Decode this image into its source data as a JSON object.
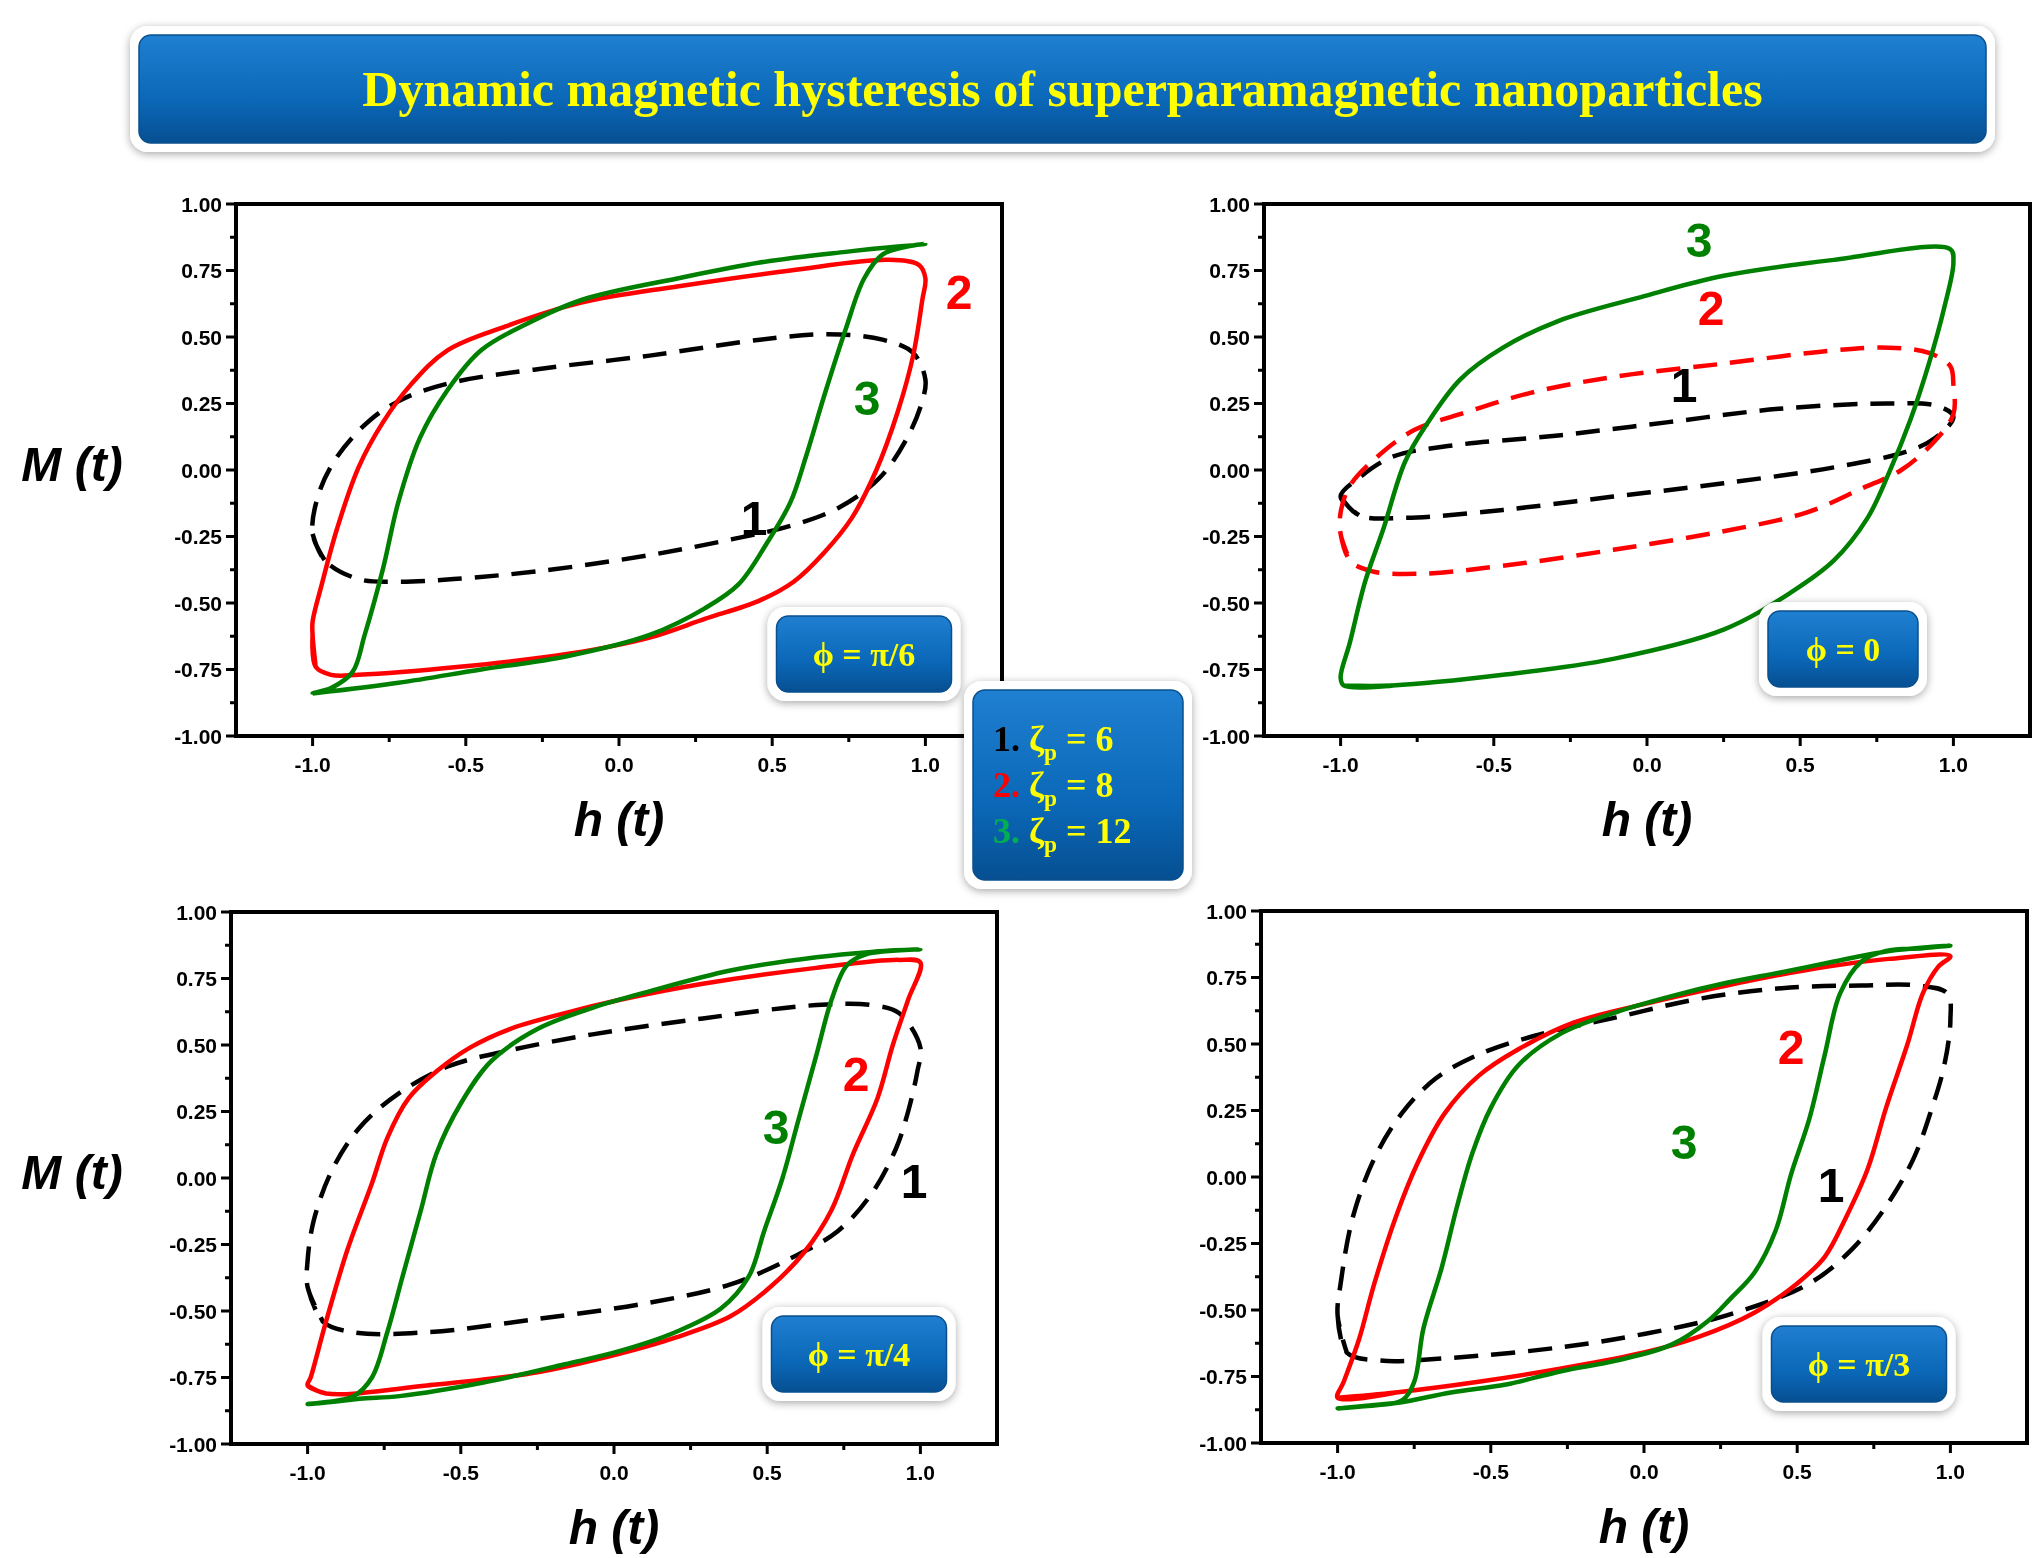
{
  "chart_data": [
    {
      "type": "line",
      "title": "Dynamic magnetic hysteresis of superparamagnetic nanoparticles",
      "xlabel": "h (t)",
      "ylabel": "M (t)",
      "xlim": [
        -1.25,
        1.25
      ],
      "ylim": [
        -1,
        1
      ],
      "xticks": [
        {
          "value": -1,
          "label": "-1.0"
        },
        {
          "value": -0.75,
          "label": null
        },
        {
          "value": -0.5,
          "label": "-0.5"
        },
        {
          "value": -0.25,
          "label": null
        },
        {
          "value": 0,
          "label": "0.0"
        },
        {
          "value": 0.25,
          "label": null
        },
        {
          "value": 0.5,
          "label": "0.5"
        },
        {
          "value": 0.75,
          "label": null
        },
        {
          "value": 1,
          "label": "1.0"
        }
      ],
      "yticks": [
        {
          "value": -1,
          "label": "-1.00"
        },
        {
          "value": -0.875,
          "label": null
        },
        {
          "value": -0.75,
          "label": "-0.75"
        },
        {
          "value": -0.625,
          "label": null
        },
        {
          "value": -0.5,
          "label": "-0.50"
        },
        {
          "value": -0.375,
          "label": null
        },
        {
          "value": -0.25,
          "label": "-0.25"
        },
        {
          "value": -0.125,
          "label": null
        },
        {
          "value": 0,
          "label": "0.00"
        },
        {
          "value": 0.125,
          "label": null
        },
        {
          "value": 0.25,
          "label": "0.25"
        },
        {
          "value": 0.375,
          "label": null
        },
        {
          "value": 0.5,
          "label": "0.50"
        },
        {
          "value": 0.625,
          "label": null
        },
        {
          "value": 0.75,
          "label": "0.75"
        },
        {
          "value": 0.875,
          "label": null
        },
        {
          "value": 1,
          "label": "1.00"
        }
      ],
      "series": [
        {
          "name": "1",
          "color": "#000000",
          "line_style": "dashed",
          "x": [
            -1.0,
            -0.96,
            -0.85,
            -0.72,
            -0.54,
            -0.26,
            0.1,
            0.37,
            0.56,
            0.72,
            0.85,
            0.94,
            0.99,
            1.0,
            0.96,
            0.86,
            0.68,
            0.46,
            0.1,
            -0.26,
            -0.54,
            -0.7,
            -0.81,
            -0.92,
            -0.98,
            -1.0,
            -0.96
          ],
          "values": [
            -0.24,
            -0.34,
            -0.41,
            -0.42,
            -0.41,
            -0.38,
            -0.32,
            -0.26,
            -0.21,
            -0.14,
            -0.03,
            0.12,
            0.26,
            0.34,
            0.44,
            0.49,
            0.51,
            0.49,
            0.43,
            0.38,
            0.33,
            0.27,
            0.19,
            0.05,
            -0.09,
            -0.24,
            -0.34
          ]
        },
        {
          "name": "2",
          "color": "#ff0000",
          "line_style": "solid",
          "x": [
            -1.0,
            -0.99,
            -0.94,
            -0.85,
            -0.52,
            -0.16,
            0.1,
            0.28,
            0.46,
            0.57,
            0.67,
            0.76,
            0.84,
            0.91,
            0.96,
            0.99,
            1.0,
            0.98,
            0.88,
            0.56,
            0.19,
            -0.12,
            -0.37,
            -0.56,
            -0.68,
            -0.77,
            -0.85,
            -0.92,
            -0.97,
            -1.0,
            -1.0,
            -0.99
          ],
          "values": [
            -0.62,
            -0.74,
            -0.77,
            -0.77,
            -0.74,
            -0.69,
            -0.63,
            -0.56,
            -0.49,
            -0.42,
            -0.31,
            -0.18,
            0.0,
            0.22,
            0.43,
            0.64,
            0.72,
            0.77,
            0.79,
            0.75,
            0.69,
            0.63,
            0.54,
            0.45,
            0.32,
            0.18,
            0.01,
            -0.22,
            -0.43,
            -0.57,
            -0.62,
            -0.74
          ]
        },
        {
          "name": "3",
          "color": "#008000",
          "line_style": "solid",
          "x": [
            -1.0,
            -0.72,
            -0.45,
            -0.17,
            0.1,
            0.28,
            0.39,
            0.48,
            0.56,
            0.61,
            0.67,
            0.74,
            0.8,
            0.86,
            0.94,
            1.0,
            0.74,
            0.46,
            0.19,
            -0.12,
            -0.3,
            -0.45,
            -0.56,
            -0.65,
            -0.72,
            -0.77,
            -0.83,
            -0.87,
            -0.94,
            -1.0,
            -0.72
          ],
          "values": [
            -0.84,
            -0.8,
            -0.75,
            -0.7,
            -0.62,
            -0.52,
            -0.43,
            -0.28,
            -0.12,
            0.05,
            0.28,
            0.53,
            0.72,
            0.81,
            0.84,
            0.85,
            0.82,
            0.78,
            0.72,
            0.64,
            0.55,
            0.45,
            0.3,
            0.12,
            -0.12,
            -0.37,
            -0.62,
            -0.76,
            -0.82,
            -0.84,
            -0.8
          ]
        }
      ],
      "annotations": [
        "ϕ = π/6"
      ]
    },
    {
      "type": "line",
      "xlabel": "h (t)",
      "xlim": [
        -1.25,
        1.25
      ],
      "ylim": [
        -1,
        1
      ],
      "xticks": [
        {
          "value": -1,
          "label": "-1.0"
        },
        {
          "value": -0.75,
          "label": null
        },
        {
          "value": -0.5,
          "label": "-0.5"
        },
        {
          "value": -0.25,
          "label": null
        },
        {
          "value": 0,
          "label": "0.0"
        },
        {
          "value": 0.25,
          "label": null
        },
        {
          "value": 0.5,
          "label": "0.5"
        },
        {
          "value": 0.75,
          "label": null
        },
        {
          "value": 1,
          "label": "1.0"
        }
      ],
      "yticks": [
        {
          "value": -1,
          "label": "-1.00"
        },
        {
          "value": -0.875,
          "label": null
        },
        {
          "value": -0.75,
          "label": "-0.75"
        },
        {
          "value": -0.625,
          "label": null
        },
        {
          "value": -0.5,
          "label": "-0.50"
        },
        {
          "value": -0.375,
          "label": null
        },
        {
          "value": -0.25,
          "label": "-0.25"
        },
        {
          "value": -0.125,
          "label": null
        },
        {
          "value": 0,
          "label": "0.00"
        },
        {
          "value": 0.125,
          "label": null
        },
        {
          "value": 0.25,
          "label": "0.25"
        },
        {
          "value": 0.375,
          "label": null
        },
        {
          "value": 0.5,
          "label": "0.50"
        },
        {
          "value": 0.625,
          "label": null
        },
        {
          "value": 0.75,
          "label": "0.75"
        },
        {
          "value": 0.875,
          "label": null
        },
        {
          "value": 1,
          "label": "1.00"
        }
      ],
      "series": [
        {
          "name": "1",
          "color": "#000000",
          "line_style": "dashed",
          "x": [
            -1.0,
            -0.94,
            -0.79,
            -0.47,
            -0.11,
            0.25,
            0.61,
            0.85,
            0.94,
            1.0,
            0.95,
            0.79,
            0.43,
            0.07,
            -0.29,
            -0.65,
            -0.83,
            -0.94,
            -1.0,
            -0.94
          ],
          "values": [
            -0.1,
            -0.17,
            -0.18,
            -0.15,
            -0.1,
            -0.05,
            0.01,
            0.07,
            0.12,
            0.2,
            0.24,
            0.25,
            0.23,
            0.18,
            0.13,
            0.09,
            0.05,
            -0.03,
            -0.1,
            -0.17
          ]
        },
        {
          "name": "2",
          "color": "#ff0000",
          "line_style": "dashed",
          "x": [
            -1.0,
            -0.97,
            -0.9,
            -0.74,
            -0.47,
            -0.11,
            0.25,
            0.52,
            0.7,
            0.83,
            0.94,
            1.0,
            1.0,
            0.99,
            0.92,
            0.79,
            0.61,
            0.25,
            -0.11,
            -0.38,
            -0.61,
            -0.76,
            -0.88,
            -0.97,
            -1.0,
            -1.0,
            -0.97
          ],
          "values": [
            -0.24,
            -0.34,
            -0.38,
            -0.39,
            -0.36,
            -0.3,
            -0.23,
            -0.16,
            -0.07,
            0.0,
            0.11,
            0.21,
            0.32,
            0.39,
            0.44,
            0.46,
            0.45,
            0.4,
            0.35,
            0.29,
            0.21,
            0.15,
            0.05,
            -0.06,
            -0.16,
            -0.24,
            -0.34
          ]
        },
        {
          "name": "3",
          "color": "#008000",
          "line_style": "solid",
          "x": [
            -0.99,
            -0.83,
            -0.47,
            -0.11,
            0.25,
            0.47,
            0.61,
            0.72,
            0.79,
            0.86,
            0.92,
            0.97,
            1.0,
            0.99,
            0.61,
            0.25,
            -0.02,
            -0.29,
            -0.47,
            -0.61,
            -0.72,
            -0.79,
            -0.86,
            -0.92,
            -0.97,
            -1.0,
            -0.99,
            -0.83
          ],
          "values": [
            -0.81,
            -0.81,
            -0.77,
            -0.71,
            -0.6,
            -0.46,
            -0.34,
            -0.18,
            -0.01,
            0.19,
            0.4,
            0.61,
            0.78,
            0.83,
            0.79,
            0.73,
            0.65,
            0.56,
            0.46,
            0.34,
            0.17,
            0.03,
            -0.22,
            -0.42,
            -0.65,
            -0.78,
            -0.81,
            -0.81
          ]
        }
      ],
      "annotations": [
        "ϕ = 0"
      ]
    },
    {
      "type": "other",
      "annotations": [
        "1. ζ$_{p}$ = 6",
        "2. ζ$_{p}$ = 8",
        "3. ζ$_{p}$ = 12"
      ],
      "colors": [
        "#000000",
        "#ff0000",
        "#00b050"
      ]
    },
    {
      "type": "line",
      "xlabel": "h (t)",
      "ylabel": "M (t)",
      "xlim": [
        -1.25,
        1.25
      ],
      "ylim": [
        -1,
        1
      ],
      "xticks": [
        {
          "value": -1,
          "label": "-1.0"
        },
        {
          "value": -0.75,
          "label": null
        },
        {
          "value": -0.5,
          "label": "-0.5"
        },
        {
          "value": -0.25,
          "label": null
        },
        {
          "value": 0,
          "label": "0.0"
        },
        {
          "value": 0.25,
          "label": null
        },
        {
          "value": 0.5,
          "label": "0.5"
        },
        {
          "value": 0.75,
          "label": null
        },
        {
          "value": 1,
          "label": "1.0"
        }
      ],
      "yticks": [
        {
          "value": -1,
          "label": "-1.00"
        },
        {
          "value": -0.875,
          "label": null
        },
        {
          "value": -0.75,
          "label": "-0.75"
        },
        {
          "value": -0.625,
          "label": null
        },
        {
          "value": -0.5,
          "label": "-0.50"
        },
        {
          "value": -0.375,
          "label": null
        },
        {
          "value": -0.25,
          "label": "-0.25"
        },
        {
          "value": -0.125,
          "label": null
        },
        {
          "value": 0,
          "label": "0.00"
        },
        {
          "value": 0.125,
          "label": null
        },
        {
          "value": 0.25,
          "label": "0.25"
        },
        {
          "value": 0.375,
          "label": null
        },
        {
          "value": 0.5,
          "label": "0.50"
        },
        {
          "value": 0.625,
          "label": null
        },
        {
          "value": 0.75,
          "label": "0.75"
        },
        {
          "value": 0.875,
          "label": null
        },
        {
          "value": 1,
          "label": "1.00"
        }
      ],
      "series": [
        {
          "name": "1",
          "color": "#000000",
          "line_style": "dashed",
          "x": [
            -1.0,
            -0.95,
            -0.85,
            -0.61,
            -0.25,
            0.11,
            0.38,
            0.58,
            0.73,
            0.84,
            0.92,
            0.96,
            0.99,
            1.0,
            0.93,
            0.84,
            0.66,
            0.29,
            -0.07,
            -0.34,
            -0.54,
            -0.7,
            -0.83,
            -0.92,
            -0.98,
            -1.0,
            -1.0,
            -0.95
          ],
          "values": [
            -0.41,
            -0.54,
            -0.58,
            -0.58,
            -0.53,
            -0.47,
            -0.4,
            -0.3,
            -0.2,
            -0.06,
            0.11,
            0.25,
            0.4,
            0.49,
            0.62,
            0.65,
            0.65,
            0.6,
            0.54,
            0.48,
            0.42,
            0.32,
            0.19,
            0.03,
            -0.16,
            -0.31,
            -0.41,
            -0.54
          ]
        },
        {
          "name": "2",
          "color": "#ff0000",
          "line_style": "solid",
          "x": [
            -1.0,
            -0.94,
            -0.61,
            -0.25,
            0.02,
            0.2,
            0.38,
            0.51,
            0.62,
            0.71,
            0.78,
            0.86,
            0.91,
            0.96,
            1.0,
            0.93,
            0.66,
            0.29,
            0.02,
            -0.16,
            -0.34,
            -0.47,
            -0.58,
            -0.67,
            -0.74,
            -0.79,
            -0.87,
            -0.94,
            -0.99,
            -1.0,
            -0.94
          ],
          "values": [
            -0.78,
            -0.81,
            -0.78,
            -0.73,
            -0.66,
            -0.6,
            -0.52,
            -0.41,
            -0.28,
            -0.12,
            0.09,
            0.3,
            0.5,
            0.67,
            0.81,
            0.82,
            0.79,
            0.73,
            0.67,
            0.62,
            0.56,
            0.49,
            0.4,
            0.3,
            0.15,
            -0.02,
            -0.27,
            -0.54,
            -0.75,
            -0.78,
            -0.81
          ]
        },
        {
          "name": "3",
          "color": "#008000",
          "line_style": "solid",
          "x": [
            -1.0,
            -0.83,
            -0.7,
            -0.43,
            -0.16,
            0.02,
            0.2,
            0.35,
            0.44,
            0.49,
            0.55,
            0.6,
            0.66,
            0.71,
            0.76,
            0.82,
            1.0,
            0.84,
            0.66,
            0.38,
            0.11,
            -0.07,
            -0.25,
            -0.4,
            -0.5,
            -0.58,
            -0.63,
            -0.69,
            -0.74,
            -0.79,
            -0.85,
            -1.0,
            -0.83
          ],
          "values": [
            -0.85,
            -0.83,
            -0.82,
            -0.77,
            -0.7,
            -0.65,
            -0.58,
            -0.49,
            -0.37,
            -0.2,
            0.0,
            0.21,
            0.46,
            0.67,
            0.8,
            0.84,
            0.86,
            0.85,
            0.83,
            0.78,
            0.7,
            0.64,
            0.56,
            0.44,
            0.28,
            0.09,
            -0.12,
            -0.37,
            -0.58,
            -0.75,
            -0.82,
            -0.85,
            -0.83
          ]
        }
      ],
      "annotations": [
        "ϕ = π/4"
      ]
    },
    {
      "type": "line",
      "xlabel": "h (t)",
      "xlim": [
        -1.25,
        1.25
      ],
      "ylim": [
        -1,
        1
      ],
      "xticks": [
        {
          "value": -1,
          "label": "-1.0"
        },
        {
          "value": -0.75,
          "label": null
        },
        {
          "value": -0.5,
          "label": "-0.5"
        },
        {
          "value": -0.25,
          "label": null
        },
        {
          "value": 0,
          "label": "0.0"
        },
        {
          "value": 0.25,
          "label": null
        },
        {
          "value": 0.5,
          "label": "0.5"
        },
        {
          "value": 0.75,
          "label": null
        },
        {
          "value": 1,
          "label": "1.0"
        }
      ],
      "yticks": [
        {
          "value": -1,
          "label": "-1.00"
        },
        {
          "value": -0.875,
          "label": null
        },
        {
          "value": -0.75,
          "label": "-0.75"
        },
        {
          "value": -0.625,
          "label": null
        },
        {
          "value": -0.5,
          "label": "-0.50"
        },
        {
          "value": -0.375,
          "label": null
        },
        {
          "value": -0.25,
          "label": "-0.25"
        },
        {
          "value": -0.125,
          "label": null
        },
        {
          "value": 0,
          "label": "0.00"
        },
        {
          "value": 0.125,
          "label": null
        },
        {
          "value": 0.25,
          "label": "0.25"
        },
        {
          "value": 0.375,
          "label": null
        },
        {
          "value": 0.5,
          "label": "0.50"
        },
        {
          "value": 0.625,
          "label": null
        },
        {
          "value": 0.75,
          "label": "0.75"
        },
        {
          "value": 0.875,
          "label": null
        },
        {
          "value": 1,
          "label": "1.00"
        }
      ],
      "series": [
        {
          "name": "1",
          "color": "#000000",
          "line_style": "dashed",
          "x": [
            -1.0,
            -0.97,
            -0.86,
            -0.63,
            -0.27,
            0.0,
            0.27,
            0.54,
            0.68,
            0.79,
            0.88,
            0.94,
            0.98,
            1.0,
            0.99,
            0.89,
            0.71,
            0.45,
            0.18,
            -0.09,
            -0.36,
            -0.54,
            -0.68,
            -0.79,
            -0.88,
            -0.95,
            -0.99,
            -1.0,
            -0.97
          ],
          "values": [
            -0.52,
            -0.66,
            -0.69,
            -0.68,
            -0.64,
            -0.59,
            -0.52,
            -0.4,
            -0.27,
            -0.11,
            0.07,
            0.26,
            0.42,
            0.59,
            0.69,
            0.72,
            0.72,
            0.71,
            0.67,
            0.6,
            0.53,
            0.46,
            0.37,
            0.24,
            0.07,
            -0.15,
            -0.4,
            -0.52,
            -0.66
          ]
        },
        {
          "name": "2",
          "color": "#ff0000",
          "line_style": "solid",
          "x": [
            -1.0,
            -0.81,
            -0.54,
            -0.27,
            0.0,
            0.18,
            0.36,
            0.5,
            0.59,
            0.66,
            0.73,
            0.79,
            0.86,
            0.91,
            0.96,
            1.0,
            0.8,
            0.54,
            0.27,
            0.0,
            -0.23,
            -0.41,
            -0.54,
            -0.65,
            -0.74,
            -0.81,
            -0.88,
            -0.93,
            -0.98,
            -1.0,
            -0.81
          ],
          "values": [
            -0.83,
            -0.81,
            -0.77,
            -0.72,
            -0.66,
            -0.6,
            -0.51,
            -0.4,
            -0.3,
            -0.15,
            0.03,
            0.26,
            0.5,
            0.69,
            0.79,
            0.83,
            0.82,
            0.78,
            0.72,
            0.65,
            0.58,
            0.48,
            0.38,
            0.24,
            0.05,
            -0.15,
            -0.4,
            -0.61,
            -0.77,
            -0.83,
            -0.81
          ]
        },
        {
          "name": "3",
          "color": "#008000",
          "line_style": "solid",
          "x": [
            -1.0,
            -0.81,
            -0.63,
            -0.45,
            -0.27,
            -0.09,
            0.09,
            0.21,
            0.28,
            0.36,
            0.43,
            0.48,
            0.54,
            0.59,
            0.64,
            0.71,
            0.79,
            0.91,
            1.0,
            0.8,
            0.62,
            0.45,
            0.27,
            0.09,
            -0.09,
            -0.27,
            -0.41,
            -0.5,
            -0.56,
            -0.61,
            -0.66,
            -0.72,
            -0.75,
            -0.79,
            -0.9,
            -1.0,
            -0.81
          ],
          "values": [
            -0.87,
            -0.85,
            -0.81,
            -0.78,
            -0.73,
            -0.69,
            -0.63,
            -0.54,
            -0.46,
            -0.36,
            -0.2,
            0.01,
            0.22,
            0.46,
            0.69,
            0.81,
            0.85,
            0.86,
            0.87,
            0.85,
            0.81,
            0.77,
            0.73,
            0.68,
            0.62,
            0.54,
            0.42,
            0.26,
            0.09,
            -0.11,
            -0.34,
            -0.57,
            -0.77,
            -0.84,
            -0.86,
            -0.87,
            -0.85
          ]
        }
      ],
      "annotations": [
        "ϕ = π/3"
      ]
    }
  ]
}
